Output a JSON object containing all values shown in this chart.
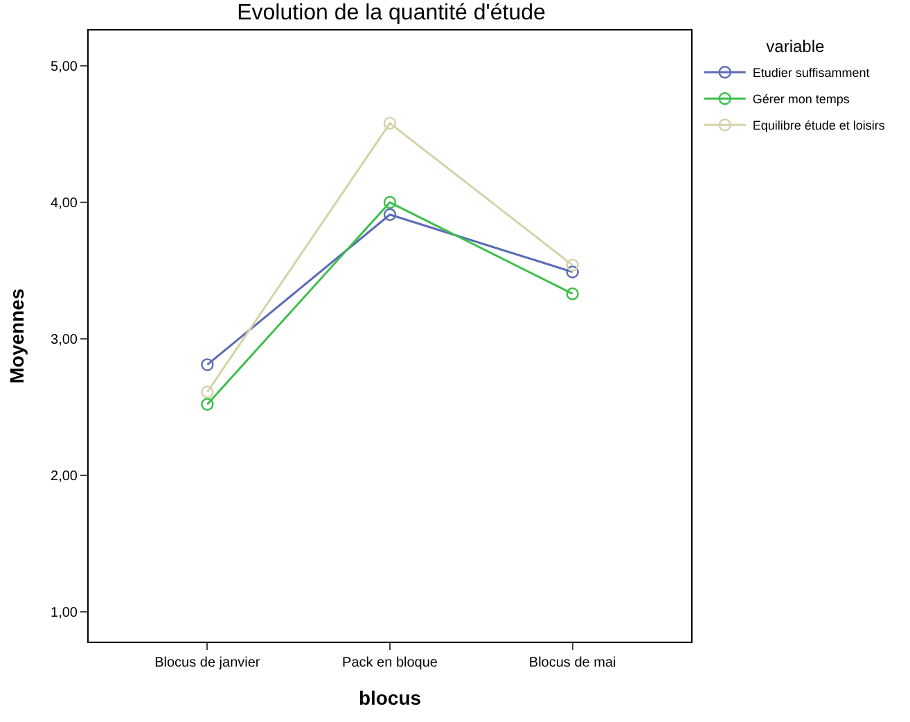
{
  "chart_data": {
    "type": "line",
    "title": "Evolution de la quantité d'étude",
    "xlabel": "blocus",
    "ylabel": "Moyennes",
    "legend_title": "variable",
    "categories": [
      "Blocus de janvier",
      "Pack en bloque",
      "Blocus de mai"
    ],
    "series": [
      {
        "name": "Etudier suffisamment",
        "color": "#5b6bb5",
        "values": [
          2.81,
          3.91,
          3.49
        ]
      },
      {
        "name": "Gérer mon temps",
        "color": "#3cbf4c",
        "values": [
          2.52,
          4.0,
          3.33
        ]
      },
      {
        "name": "Equilibre étude et loisirs",
        "color": "#d4d2a8",
        "values": [
          2.61,
          4.58,
          3.54
        ]
      }
    ],
    "ylim": [
      0.78,
      5.26
    ],
    "yticks": [
      {
        "value": 1,
        "label": "1,00"
      },
      {
        "value": 2,
        "label": "2,00"
      },
      {
        "value": 3,
        "label": "3,00"
      },
      {
        "value": 4,
        "label": "4,00"
      },
      {
        "value": 5,
        "label": "5,00"
      }
    ],
    "legend": "top right",
    "marker": "circle",
    "line_style": "solid"
  }
}
